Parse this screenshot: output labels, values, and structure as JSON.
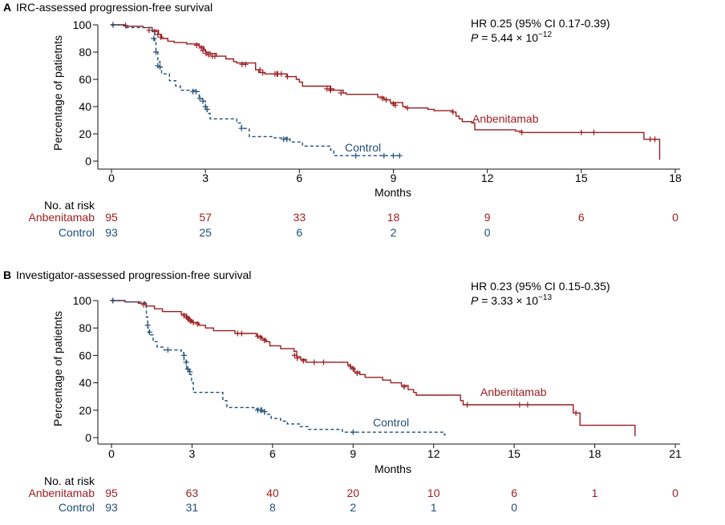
{
  "colors": {
    "anbenitamab": "#9b1c1f",
    "control": "#1f4e79",
    "axis": "#111111"
  },
  "chart_data": [
    {
      "type": "line",
      "subtype": "kaplan-meier",
      "panel_letter": "A",
      "title": "IRC-assessed progression-free survival",
      "xlabel": "Months",
      "ylabel": "Percentage of patietnts",
      "xlim": [
        0,
        18
      ],
      "ylim": [
        0,
        100
      ],
      "xticks": [
        "0",
        "3",
        "6",
        "9",
        "12",
        "15",
        "18"
      ],
      "yticks": [
        "0",
        "20",
        "40",
        "60",
        "80",
        "100"
      ],
      "hr_text": "HR 0.25 (95% CI 0.17-0.39)",
      "p_label": "P",
      "p_value": " = 5.44 × 10",
      "p_exponent": "−12",
      "series": [
        {
          "name": "Anbenitamab",
          "style": "solid",
          "steps": [
            [
              0,
              100
            ],
            [
              0.45,
              99
            ],
            [
              1.0,
              98
            ],
            [
              1.3,
              96
            ],
            [
              1.5,
              93
            ],
            [
              1.6,
              90
            ],
            [
              1.8,
              88
            ],
            [
              2.0,
              87
            ],
            [
              2.4,
              86
            ],
            [
              2.8,
              84
            ],
            [
              2.95,
              82
            ],
            [
              3.0,
              80
            ],
            [
              3.15,
              79
            ],
            [
              3.35,
              77
            ],
            [
              3.65,
              75
            ],
            [
              3.9,
              73
            ],
            [
              4.0,
              72
            ],
            [
              4.6,
              70
            ],
            [
              4.6,
              67
            ],
            [
              4.7,
              65
            ],
            [
              4.9,
              64
            ],
            [
              5.4,
              64
            ],
            [
              5.6,
              62
            ],
            [
              5.9,
              60
            ],
            [
              6.0,
              58
            ],
            [
              6.1,
              55
            ],
            [
              7.0,
              53
            ],
            [
              7.1,
              52
            ],
            [
              7.4,
              50
            ],
            [
              7.5,
              49
            ],
            [
              8.5,
              47
            ],
            [
              8.7,
              45
            ],
            [
              8.9,
              43
            ],
            [
              9.3,
              40
            ],
            [
              9.4,
              39
            ],
            [
              10.1,
              38
            ],
            [
              10.3,
              37
            ],
            [
              10.9,
              36
            ],
            [
              11.0,
              33
            ],
            [
              11.1,
              31
            ],
            [
              11.2,
              29
            ],
            [
              11.5,
              28
            ],
            [
              11.6,
              23
            ],
            [
              12.9,
              22
            ],
            [
              13.1,
              21
            ],
            [
              17.0,
              16
            ],
            [
              17.5,
              1
            ]
          ],
          "censor": [
            [
              0.05,
              100
            ],
            [
              0.45,
              99.5
            ],
            [
              1.2,
              96
            ],
            [
              1.38,
              95
            ],
            [
              1.48,
              93
            ],
            [
              1.57,
              91
            ],
            [
              2.72,
              85
            ],
            [
              2.87,
              83
            ],
            [
              2.92,
              81
            ],
            [
              3.02,
              79
            ],
            [
              3.1,
              78
            ],
            [
              3.22,
              77
            ],
            [
              3.3,
              77
            ],
            [
              4.17,
              71
            ],
            [
              4.28,
              71
            ],
            [
              4.74,
              67
            ],
            [
              4.83,
              65
            ],
            [
              5.22,
              64
            ],
            [
              5.28,
              64
            ],
            [
              5.31,
              64
            ],
            [
              5.42,
              64
            ],
            [
              5.62,
              62
            ],
            [
              6.88,
              53
            ],
            [
              6.98,
              53
            ],
            [
              7.0,
              52
            ],
            [
              7.33,
              50
            ],
            [
              8.65,
              46
            ],
            [
              8.77,
              45
            ],
            [
              9.0,
              42
            ],
            [
              9.06,
              41
            ],
            [
              9.45,
              39
            ],
            [
              10.9,
              36
            ],
            [
              13.1,
              21
            ],
            [
              15.0,
              21
            ],
            [
              15.4,
              21
            ],
            [
              17.2,
              16
            ],
            [
              17.35,
              16
            ]
          ],
          "end": 17.5
        },
        {
          "name": "Control",
          "style": "dashed",
          "steps": [
            [
              0,
              100
            ],
            [
              0.4,
              98
            ],
            [
              1.3,
              95
            ],
            [
              1.38,
              87
            ],
            [
              1.42,
              80
            ],
            [
              1.48,
              73
            ],
            [
              1.55,
              69
            ],
            [
              1.6,
              64
            ],
            [
              1.85,
              59
            ],
            [
              2.05,
              55
            ],
            [
              2.2,
              52
            ],
            [
              2.7,
              51
            ],
            [
              2.8,
              46
            ],
            [
              2.9,
              44
            ],
            [
              3.0,
              40
            ],
            [
              3.05,
              35
            ],
            [
              3.15,
              31
            ],
            [
              4.0,
              28
            ],
            [
              4.15,
              24
            ],
            [
              4.4,
              18
            ],
            [
              5.2,
              17
            ],
            [
              5.7,
              14
            ],
            [
              6.1,
              11
            ],
            [
              7.0,
              8
            ],
            [
              7.1,
              4
            ]
          ],
          "censor": [
            [
              0.05,
              100
            ],
            [
              1.35,
              90
            ],
            [
              1.42,
              80
            ],
            [
              1.48,
              70
            ],
            [
              1.55,
              69
            ],
            [
              2.6,
              51
            ],
            [
              2.7,
              51
            ],
            [
              2.82,
              46
            ],
            [
              2.92,
              44
            ],
            [
              3.0,
              40
            ],
            [
              3.05,
              38
            ],
            [
              4.15,
              24
            ],
            [
              5.5,
              16
            ],
            [
              5.6,
              16
            ],
            [
              7.8,
              4
            ],
            [
              8.7,
              4
            ],
            [
              9.0,
              4
            ],
            [
              9.2,
              4
            ]
          ],
          "end": 9.25
        }
      ],
      "series_labels": {
        "anbenitamab": "Anbenitamab",
        "control": "Control"
      },
      "risk_title": "No. at risk",
      "risk_rows": [
        {
          "name": "Anbenitamab",
          "values": [
            "95",
            "57",
            "33",
            "18",
            "9",
            "6",
            "0"
          ]
        },
        {
          "name": "Control",
          "values": [
            "93",
            "25",
            "6",
            "2",
            "0"
          ]
        }
      ]
    },
    {
      "type": "line",
      "subtype": "kaplan-meier",
      "panel_letter": "B",
      "title": "Investigator-assessed progression-free survival",
      "xlabel": "Months",
      "ylabel": "Percentage of patietnts",
      "xlim": [
        0,
        21
      ],
      "ylim": [
        0,
        100
      ],
      "xticks": [
        "0",
        "3",
        "6",
        "9",
        "12",
        "15",
        "18",
        "21"
      ],
      "yticks": [
        "0",
        "20",
        "40",
        "60",
        "80",
        "100"
      ],
      "hr_text": "HR 0.23 (95% CI 0.15-0.35)",
      "p_label": "P",
      "p_value": " = 3.33 × 10",
      "p_exponent": "−13",
      "series": [
        {
          "name": "Anbenitamab",
          "style": "solid",
          "steps": [
            [
              0,
              100
            ],
            [
              0.5,
              99
            ],
            [
              1.0,
              98
            ],
            [
              1.3,
              96
            ],
            [
              1.6,
              94
            ],
            [
              1.9,
              92
            ],
            [
              2.6,
              90
            ],
            [
              2.8,
              88
            ],
            [
              2.9,
              86
            ],
            [
              3.0,
              84
            ],
            [
              3.25,
              82
            ],
            [
              3.5,
              80
            ],
            [
              3.8,
              78
            ],
            [
              4.6,
              76
            ],
            [
              5.4,
              74
            ],
            [
              5.6,
              72
            ],
            [
              5.75,
              70
            ],
            [
              5.9,
              67
            ],
            [
              6.3,
              65
            ],
            [
              6.8,
              63
            ],
            [
              6.9,
              59
            ],
            [
              7.05,
              57
            ],
            [
              7.25,
              55
            ],
            [
              8.8,
              53
            ],
            [
              8.9,
              51
            ],
            [
              9.05,
              48
            ],
            [
              9.25,
              46
            ],
            [
              9.45,
              44
            ],
            [
              10.1,
              42
            ],
            [
              10.4,
              40
            ],
            [
              10.8,
              38
            ],
            [
              11.05,
              35
            ],
            [
              11.25,
              33
            ],
            [
              11.35,
              31
            ],
            [
              13.0,
              27
            ],
            [
              13.1,
              24
            ],
            [
              17.2,
              18
            ],
            [
              17.45,
              9
            ],
            [
              19.5,
              1
            ]
          ],
          "censor": [
            [
              0.05,
              100
            ],
            [
              1.2,
              97
            ],
            [
              2.7,
              89
            ],
            [
              2.8,
              88
            ],
            [
              2.85,
              87
            ],
            [
              2.9,
              86
            ],
            [
              2.95,
              85
            ],
            [
              3.05,
              84
            ],
            [
              3.2,
              83
            ],
            [
              4.7,
              76
            ],
            [
              4.85,
              76
            ],
            [
              5.45,
              74
            ],
            [
              5.55,
              73
            ],
            [
              5.7,
              71
            ],
            [
              6.82,
              60
            ],
            [
              6.92,
              58
            ],
            [
              7.15,
              56
            ],
            [
              7.55,
              55
            ],
            [
              7.9,
              55
            ],
            [
              8.9,
              52
            ],
            [
              9.0,
              50
            ],
            [
              9.15,
              47
            ],
            [
              10.9,
              37
            ],
            [
              13.25,
              24
            ],
            [
              15.2,
              24
            ],
            [
              15.5,
              24
            ],
            [
              17.3,
              18
            ]
          ],
          "end": 19.5
        },
        {
          "name": "Control",
          "style": "dashed",
          "steps": [
            [
              0,
              100
            ],
            [
              0.5,
              99
            ],
            [
              1.25,
              96
            ],
            [
              1.3,
              88
            ],
            [
              1.35,
              80
            ],
            [
              1.4,
              75
            ],
            [
              1.55,
              70
            ],
            [
              1.7,
              66
            ],
            [
              1.95,
              64
            ],
            [
              2.6,
              62
            ],
            [
              2.7,
              56
            ],
            [
              2.8,
              50
            ],
            [
              2.9,
              46
            ],
            [
              2.98,
              40
            ],
            [
              3.05,
              33
            ],
            [
              4.15,
              27
            ],
            [
              4.3,
              22
            ],
            [
              5.3,
              21
            ],
            [
              5.55,
              20
            ],
            [
              5.7,
              17
            ],
            [
              5.95,
              14
            ],
            [
              6.3,
              12
            ],
            [
              6.55,
              10
            ],
            [
              7.0,
              8
            ],
            [
              7.35,
              6
            ],
            [
              8.6,
              4
            ],
            [
              12.4,
              2
            ]
          ],
          "censor": [
            [
              0.05,
              100
            ],
            [
              1.35,
              82
            ],
            [
              1.42,
              77
            ],
            [
              2.1,
              64
            ],
            [
              2.7,
              60
            ],
            [
              2.78,
              55
            ],
            [
              2.85,
              50
            ],
            [
              2.92,
              48
            ],
            [
              5.45,
              20
            ],
            [
              5.55,
              20
            ],
            [
              5.6,
              20
            ],
            [
              5.7,
              19
            ],
            [
              9.0,
              4
            ]
          ],
          "end": 12.45
        }
      ],
      "series_labels": {
        "anbenitamab": "Anbenitamab",
        "control": "Control"
      },
      "risk_title": "No. at risk",
      "risk_rows": [
        {
          "name": "Anbenitamab",
          "values": [
            "95",
            "63",
            "40",
            "20",
            "10",
            "6",
            "1",
            "0"
          ]
        },
        {
          "name": "Control",
          "values": [
            "93",
            "31",
            "8",
            "2",
            "1",
            "0"
          ]
        }
      ]
    }
  ]
}
